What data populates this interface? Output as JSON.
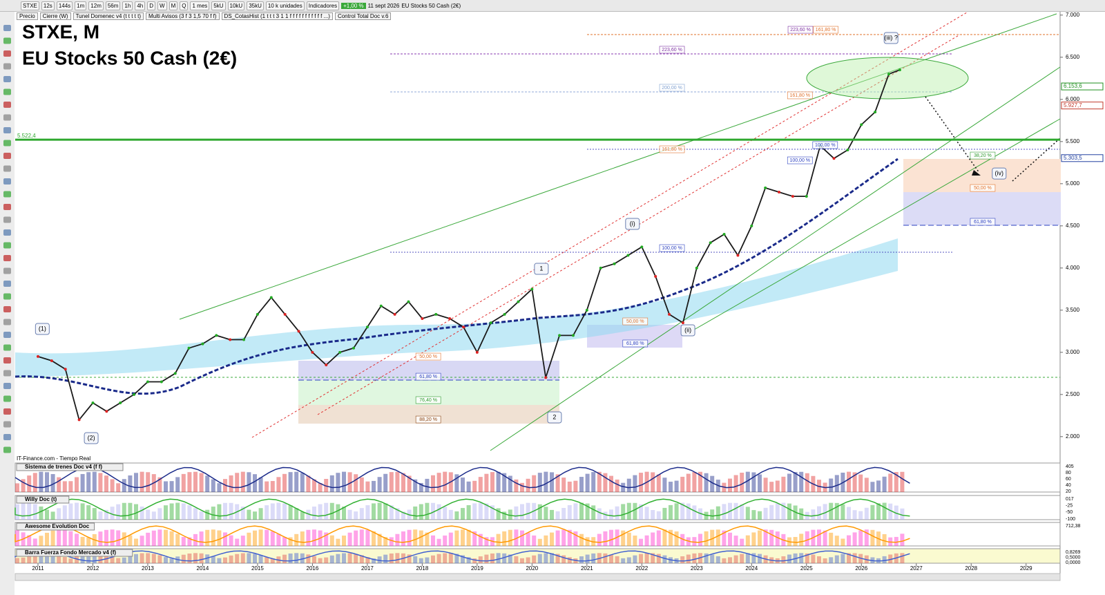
{
  "toolbar": {
    "symbol": "STXE",
    "timeframes": [
      "12s",
      "144s",
      "1m",
      "12m",
      "56m",
      "1h",
      "4h",
      "D",
      "W",
      "M",
      "Q"
    ],
    "period": "1 mes",
    "units": [
      "5kU",
      "10kU",
      "35kU"
    ],
    "unit_select": "10 k unidades",
    "indicators_button": "Indicadores",
    "change": "+1,00 %",
    "date": "11 sept 2026",
    "instrument": "EU Stocks 50 Cash (2€)"
  },
  "indicator_bar": [
    "Precio",
    "Cierre (W)",
    "Tunel Domenec v4 (t t t t t)",
    "Multi Avisos (3 f 3 1,5 70 f f)",
    "DS_CotasHist (1 t t t 3 1 1 f f f f f f f f f f f ...)",
    "Control Total Doc v.6"
  ],
  "source": "IT-Finance.com - Tiempo Real",
  "panels": [
    {
      "title": "Sistema de trenes Doc v4 (f f)",
      "labels": [
        "405",
        "80",
        "60",
        "40",
        "20"
      ]
    },
    {
      "title": "Willy Doc (t)",
      "labels": [
        "017",
        "-25",
        "-50",
        "-100"
      ]
    },
    {
      "title": "Awesome Evolution Doc",
      "labels": [
        "712,38"
      ]
    },
    {
      "title": "Barra Fuerza Fondo Mercado v4 (f)",
      "labels": [
        "0,8269",
        "0,5000",
        "0,0000"
      ]
    }
  ],
  "chart_data": {
    "type": "line",
    "title": "STXE, M",
    "subtitle": "EU Stocks 50 Cash (2€)",
    "color": "#1a1a1a",
    "x": [
      2011.0,
      2011.25,
      2011.5,
      2011.75,
      2012.0,
      2012.25,
      2012.5,
      2012.75,
      2013.0,
      2013.25,
      2013.5,
      2013.75,
      2014.0,
      2014.25,
      2014.5,
      2014.75,
      2015.0,
      2015.25,
      2015.5,
      2015.75,
      2016.0,
      2016.25,
      2016.5,
      2016.75,
      2017.0,
      2017.25,
      2017.5,
      2017.75,
      2018.0,
      2018.25,
      2018.5,
      2018.75,
      2019.0,
      2019.25,
      2019.5,
      2019.75,
      2020.0,
      2020.25,
      2020.5,
      2020.75,
      2021.0,
      2021.25,
      2021.5,
      2021.75,
      2022.0,
      2022.25,
      2022.5,
      2022.75,
      2023.0,
      2023.25,
      2023.5,
      2023.75,
      2024.0,
      2024.25,
      2024.5,
      2024.75,
      2025.0,
      2025.25,
      2025.5,
      2025.75,
      2026.0,
      2026.25,
      2026.5,
      2026.7
    ],
    "values": [
      2950,
      2900,
      2800,
      2200,
      2400,
      2300,
      2400,
      2500,
      2650,
      2650,
      2750,
      3050,
      3100,
      3200,
      3150,
      3150,
      3450,
      3650,
      3450,
      3250,
      3000,
      2850,
      3000,
      3050,
      3300,
      3550,
      3450,
      3600,
      3400,
      3450,
      3400,
      3300,
      3000,
      3350,
      3450,
      3600,
      3750,
      2700,
      3200,
      3200,
      3500,
      4000,
      4050,
      4150,
      4250,
      3900,
      3450,
      3350,
      4000,
      4300,
      4400,
      4150,
      4500,
      4950,
      4900,
      4850,
      4850,
      5450,
      5300,
      5400,
      5700,
      5850,
      6300,
      6350
    ],
    "xlim": [
      2010.585,
      2029.62
    ],
    "xticks": [
      2011,
      2012,
      2013,
      2014,
      2015,
      2016,
      2017,
      2018,
      2019,
      2020,
      2021,
      2022,
      2023,
      2024,
      2025,
      2026,
      2027,
      2028,
      2029
    ],
    "ylim": [
      1810,
      7015
    ],
    "yticks": [
      {
        "value": 2000,
        "label": "2.000"
      },
      {
        "value": 2500,
        "label": "2.500"
      },
      {
        "value": 3000,
        "label": "3.000"
      },
      {
        "value": 3500,
        "label": "3.500"
      },
      {
        "value": 4000,
        "label": "4.000"
      },
      {
        "value": 4500,
        "label": "4.500"
      },
      {
        "value": 5000,
        "label": "5.000"
      },
      {
        "value": 5500,
        "label": "5.500"
      },
      {
        "value": 6000,
        "label": "6.000"
      },
      {
        "value": 6500,
        "label": "6.500"
      },
      {
        "value": 7000,
        "label": "7.000"
      }
    ],
    "levels": [
      {
        "value": 5522.4,
        "label": "5.522,4",
        "color": "#2ea82e"
      }
    ],
    "price_markers": [
      {
        "value": 6153.6,
        "label": "6.153,6",
        "color": "#1f8f1f"
      },
      {
        "value": 5927.7,
        "label": "5.927,7",
        "color": "#c0392b"
      },
      {
        "value": 5303.5,
        "label": "5.303,5",
        "color": "#1f3f9f"
      }
    ],
    "fib_labels": [
      {
        "text": "223,60 %",
        "x": 2024.89,
        "y": 6826,
        "color": "#7b2fa0"
      },
      {
        "text": "161,80 %",
        "x": 2025.35,
        "y": 6826,
        "color": "#e0702a"
      },
      {
        "text": "223,60 %",
        "x": 2022.55,
        "y": 6589,
        "color": "#7b2fa0"
      },
      {
        "text": "200,00 %",
        "x": 2022.55,
        "y": 6138,
        "color": "#7fa0d0"
      },
      {
        "text": "161,80 %",
        "x": 2024.88,
        "y": 6048,
        "color": "#e0702a"
      },
      {
        "text": "100,00 %",
        "x": 2025.34,
        "y": 5458,
        "color": "#2a3fc0"
      },
      {
        "text": "100,00 %",
        "x": 2024.88,
        "y": 5277,
        "color": "#2a3fc0"
      },
      {
        "text": "161,80 %",
        "x": 2022.55,
        "y": 5408,
        "color": "#e0702a"
      },
      {
        "text": "100,00 %",
        "x": 2022.55,
        "y": 4236,
        "color": "#2a3fc0"
      },
      {
        "text": "38,20 %",
        "x": 2028.21,
        "y": 5334,
        "color": "#2e9a2e"
      },
      {
        "text": "50,00 %",
        "x": 2028.21,
        "y": 4949,
        "color": "#e0702a"
      },
      {
        "text": "61,80 %",
        "x": 2028.21,
        "y": 4548,
        "color": "#2a3fc0"
      },
      {
        "text": "50,00 %",
        "x": 2021.88,
        "y": 3367,
        "color": "#e0702a"
      },
      {
        "text": "61,80 %",
        "x": 2021.88,
        "y": 3105,
        "color": "#2a3fc0"
      },
      {
        "text": "50,00 %",
        "x": 2018.11,
        "y": 2949,
        "color": "#e0702a"
      },
      {
        "text": "61,80 %",
        "x": 2018.11,
        "y": 2711,
        "color": "#2a3fc0"
      },
      {
        "text": "76,40 %",
        "x": 2018.11,
        "y": 2433,
        "color": "#2e9a2e"
      },
      {
        "text": "88,20 %",
        "x": 2018.11,
        "y": 2203,
        "color": "#8b4513"
      }
    ],
    "wave_labels": [
      {
        "text": "(1)",
        "x": 2011.08,
        "y": 3277
      },
      {
        "text": "(2)",
        "x": 2011.97,
        "y": 1982
      },
      {
        "text": "1",
        "x": 2020.17,
        "y": 3990
      },
      {
        "text": "2",
        "x": 2020.41,
        "y": 2228
      },
      {
        "text": "(i)",
        "x": 2021.83,
        "y": 4523
      },
      {
        "text": "(ii)",
        "x": 2022.84,
        "y": 3261
      },
      {
        "text": "(iii) ?",
        "x": 2026.54,
        "y": 6728
      },
      {
        "text": "(iv)",
        "x": 2028.51,
        "y": 5121
      }
    ]
  }
}
